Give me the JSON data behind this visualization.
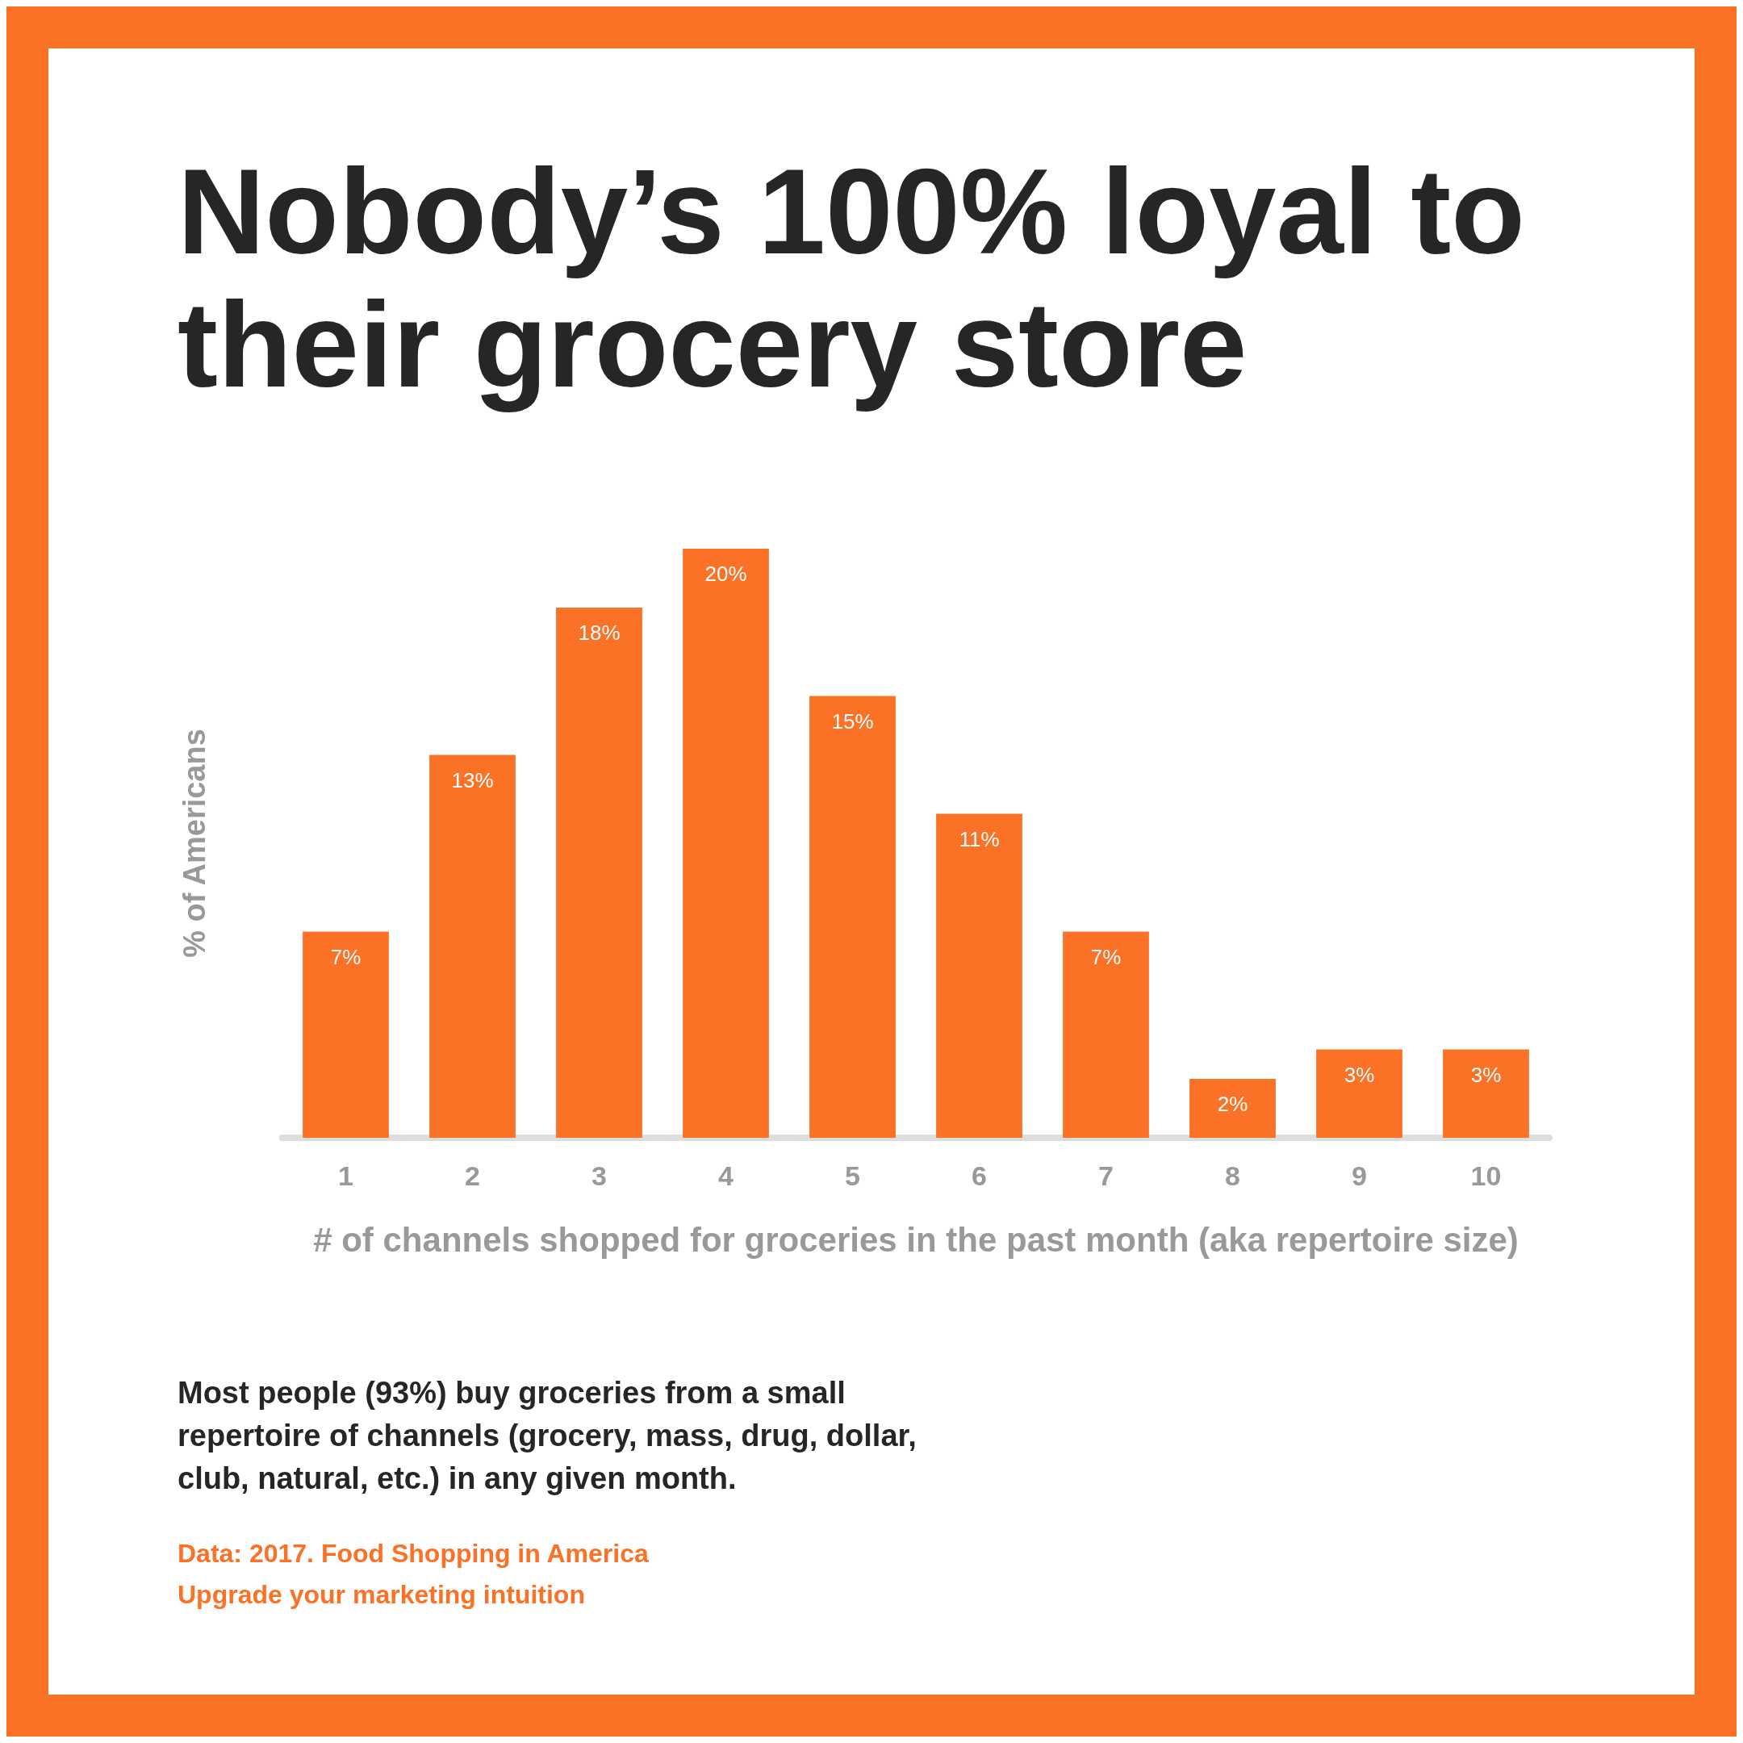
{
  "chart_data": {
    "type": "bar",
    "title": "Nobody’s 100% loyal to their grocery store",
    "xlabel": "# of channels shopped for groceries in the past month (aka repertoire size)",
    "ylabel": "% of Americans",
    "categories": [
      "1",
      "2",
      "3",
      "4",
      "5",
      "6",
      "7",
      "8",
      "9",
      "10"
    ],
    "values": [
      7,
      13,
      18,
      20,
      15,
      11,
      7,
      2,
      3,
      3
    ],
    "value_labels": [
      "7%",
      "13%",
      "18%",
      "20%",
      "15%",
      "11%",
      "7%",
      "2%",
      "3%",
      "3%"
    ],
    "color": "#fb7125",
    "annotations": [
      "Most people (93%) buy groceries from a small repertoire of channels (grocery, mass, drug, dollar, club, natural, etc.) in any given month.",
      "Data: 2017. Food Shopping in America",
      "Upgrade your marketing intuition"
    ]
  }
}
